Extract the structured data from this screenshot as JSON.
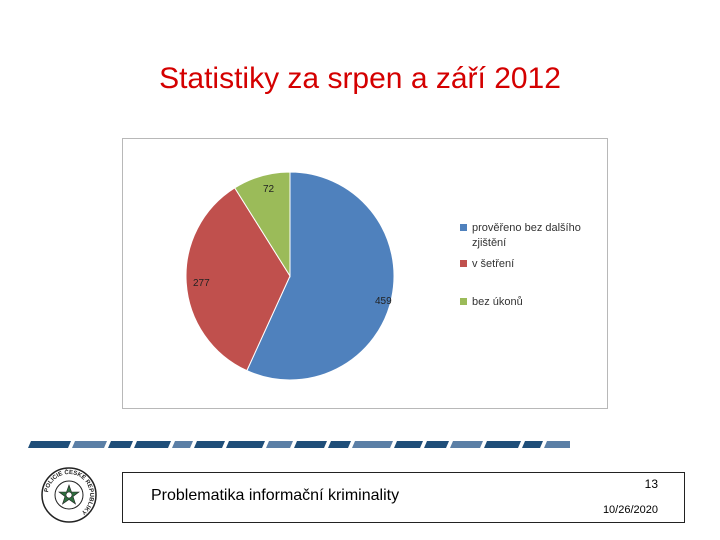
{
  "slide": {
    "title": "Statistiky za srpen a září 2012",
    "footer_text": "Problematika informační kriminality",
    "page_number": "13",
    "date": "10/26/2020"
  },
  "chart_data": {
    "type": "pie",
    "slices": [
      {
        "label": "prověřeno bez dalšího zjištění",
        "value": 459,
        "color": "#4f81bd"
      },
      {
        "label": "v šetření",
        "value": 277,
        "color": "#c0504d"
      },
      {
        "label": "bez úkonů",
        "value": 72,
        "color": "#9bbb59"
      }
    ],
    "legend": {
      "placement": "right",
      "entries": [
        [
          "prověřeno bez dalšího",
          "zjištění"
        ],
        [
          "v šetření"
        ],
        [
          "bez úkonů"
        ]
      ]
    },
    "data_labels": [
      "459",
      "277",
      "72"
    ],
    "title": ""
  },
  "logo": {
    "text": "POLICIE ČESKÉ REPUBLIKY"
  },
  "colors": {
    "title": "#d40000",
    "stripe": "#1f4e79"
  }
}
